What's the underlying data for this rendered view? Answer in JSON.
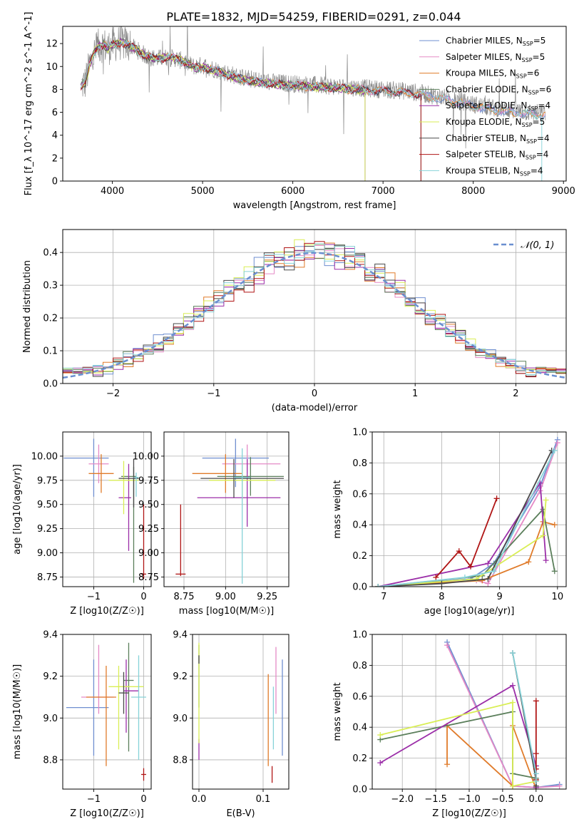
{
  "figure": {
    "title": "PLATE=1832, MJD=54259, FIBERID=0291, z=0.044"
  },
  "colors": {
    "Chabrier MILES": "#6f8fd0",
    "Salpeter MILES": "#e58ac6",
    "Kroupa MILES": "#e07b2a",
    "Chabrier ELODIE": "#5b7f5b",
    "Salpeter ELODIE": "#9b2ea8",
    "Kroupa ELODIE": "#d9ee55",
    "Chabrier STELIB": "#4a4a4a",
    "Salpeter STELIB": "#b01515",
    "Kroupa STELIB": "#86d2d8",
    "data": "#8a8a8a",
    "normal": "#6a8fd0"
  },
  "chart_data": [
    {
      "id": "spectrum",
      "type": "line",
      "xlabel": "wavelength [Angstrom, rest frame]",
      "ylabel": "Flux [f_λ 10^-17 erg cm^-2 s^-1 A^-1]",
      "xlim": [
        3450,
        9030
      ],
      "ylim": [
        0,
        13.5
      ],
      "xticks": [
        4000,
        5000,
        6000,
        7000,
        8000,
        9000
      ],
      "yticks": [
        0,
        2,
        4,
        6,
        8,
        10,
        12
      ],
      "legend_position": "top-right",
      "legend": [
        {
          "name": "Chabrier MILES",
          "nssp": "5"
        },
        {
          "name": "Salpeter MILES",
          "nssp": "5"
        },
        {
          "name": "Kroupa MILES",
          "nssp": "6"
        },
        {
          "name": "Chabrier ELODIE",
          "nssp": "6"
        },
        {
          "name": "Salpeter ELODIE",
          "nssp": "4"
        },
        {
          "name": "Kroupa ELODIE",
          "nssp": "5"
        },
        {
          "name": "Chabrier STELIB",
          "nssp": "4"
        },
        {
          "name": "Salpeter STELIB",
          "nssp": "4"
        },
        {
          "name": "Kroupa STELIB",
          "nssp": "4"
        }
      ],
      "continuum": {
        "x": [
          3650,
          3700,
          3750,
          3800,
          3850,
          3900,
          3950,
          4000,
          4100,
          4200,
          4300,
          4400,
          4500,
          4600,
          4700,
          4800,
          4900,
          5000,
          5200,
          5400,
          5600,
          5800,
          6000,
          6200,
          6400,
          6600,
          6800,
          7000,
          7200,
          7400,
          7600,
          7800,
          8000,
          8200,
          8400,
          8600,
          8800
        ],
        "y": [
          8.3,
          8.6,
          10.2,
          11.2,
          11.8,
          11.9,
          11.6,
          11.9,
          12.1,
          11.8,
          11.3,
          10.8,
          10.7,
          10.8,
          10.7,
          10.4,
          10.0,
          10.1,
          9.6,
          9.1,
          8.8,
          8.6,
          8.5,
          8.4,
          8.3,
          8.2,
          8.1,
          8.0,
          7.9,
          7.7,
          7.4,
          7.1,
          6.7,
          6.4,
          6.2,
          6.0,
          5.9
        ]
      },
      "models_end": {
        "STELIB": 7420,
        "ELODIE": 6800,
        "Kroupa STELIB": 9000
      }
    },
    {
      "id": "residual-distribution",
      "type": "line",
      "xlabel": "(data-model)/error",
      "ylabel": "Normed distribution",
      "xlim": [
        -2.5,
        2.5
      ],
      "ylim": [
        0,
        0.47
      ],
      "xticks": [
        -2,
        -1,
        0,
        1,
        2
      ],
      "yticks": [
        0.0,
        0.1,
        0.2,
        0.3,
        0.4
      ],
      "legend": [
        {
          "name": "𝒩(0, 1)"
        }
      ],
      "bin_width": 0.1
    },
    {
      "id": "age-vs-Z",
      "type": "scatter",
      "xlabel": "Z [log10(Z/Z☉)]",
      "ylabel": "age  [log10(age/yr)]",
      "xlim": [
        -1.62,
        0.15
      ],
      "ylim": [
        8.65,
        10.25
      ],
      "xticks": [
        -1,
        0
      ],
      "yticks": [
        8.75,
        9.0,
        9.25,
        9.5,
        9.75,
        10.0
      ],
      "series": [
        {
          "name": "Chabrier MILES",
          "x": -1.0,
          "y": 9.98,
          "xerr": [
            0.6,
            0.3
          ],
          "yerr": [
            0.4,
            0.2
          ]
        },
        {
          "name": "Salpeter MILES",
          "x": -0.9,
          "y": 9.92,
          "xerr": [
            0.2,
            0.2
          ],
          "yerr": [
            0.2,
            0.2
          ]
        },
        {
          "name": "Kroupa MILES",
          "x": -0.85,
          "y": 9.82,
          "xerr": [
            0.25,
            0.25
          ],
          "yerr": [
            0.2,
            0.2
          ]
        },
        {
          "name": "Chabrier ELODIE",
          "x": -0.2,
          "y": 9.79,
          "xerr": [
            0.25,
            0.05
          ],
          "yerr": [
            1.1,
            0.1
          ]
        },
        {
          "name": "Salpeter ELODIE",
          "x": -0.3,
          "y": 9.57,
          "xerr": [
            0.2,
            0.05
          ],
          "yerr": [
            0.55,
            0.35
          ]
        },
        {
          "name": "Kroupa ELODIE",
          "x": -0.4,
          "y": 9.75,
          "xerr": [
            0.3,
            0.3
          ],
          "yerr": [
            0.35,
            0.2
          ]
        },
        {
          "name": "Chabrier STELIB",
          "x": -0.2,
          "y": 9.77,
          "xerr": [
            0.3,
            0.1
          ],
          "yerr": [
            0.3,
            0.2
          ]
        },
        {
          "name": "Salpeter STELIB",
          "x": 0.0,
          "y": 8.78,
          "xerr": [
            0.05,
            0.05
          ],
          "yerr": [
            0.05,
            0.72
          ]
        },
        {
          "name": "Kroupa STELIB",
          "x": -0.15,
          "y": 9.78,
          "xerr": [
            0.05,
            0.05
          ],
          "yerr": [
            0.2,
            0.05
          ]
        }
      ]
    },
    {
      "id": "age-vs-mass",
      "type": "scatter",
      "xlabel": "mass [log10(M/M☉)]",
      "ylabel": "",
      "xlim": [
        8.63,
        9.38
      ],
      "ylim": [
        8.65,
        10.25
      ],
      "xticks": [
        8.75,
        9.0,
        9.25
      ],
      "yticks": [
        8.75,
        9.0,
        9.25,
        9.5,
        9.75,
        10.0
      ],
      "series": [
        {
          "name": "Chabrier MILES",
          "x": 9.06,
          "y": 9.98,
          "xerr": [
            0.2,
            0.2
          ],
          "yerr": [
            0.3,
            0.2
          ]
        },
        {
          "name": "Salpeter MILES",
          "x": 9.13,
          "y": 9.92,
          "xerr": [
            0.15,
            0.2
          ],
          "yerr": [
            0.1,
            0.2
          ]
        },
        {
          "name": "Kroupa MILES",
          "x": 9.0,
          "y": 9.82,
          "xerr": [
            0.2,
            0.1
          ],
          "yerr": [
            0.2,
            0.2
          ]
        },
        {
          "name": "Chabrier ELODIE",
          "x": 9.15,
          "y": 9.79,
          "xerr": [
            0.2,
            0.2
          ],
          "yerr": [
            0.2,
            0.2
          ]
        },
        {
          "name": "Salpeter ELODIE",
          "x": 9.13,
          "y": 9.57,
          "xerr": [
            0.3,
            0.2
          ],
          "yerr": [
            0.3,
            0.4
          ]
        },
        {
          "name": "Kroupa ELODIE",
          "x": 9.1,
          "y": 9.75,
          "xerr": [
            0.2,
            0.2
          ],
          "yerr": [
            0.2,
            0.2
          ]
        },
        {
          "name": "Chabrier STELIB",
          "x": 9.05,
          "y": 9.77,
          "xerr": [
            0.2,
            0.3
          ],
          "yerr": [
            0.2,
            0.2
          ]
        },
        {
          "name": "Salpeter STELIB",
          "x": 8.73,
          "y": 8.78,
          "xerr": [
            0.03,
            0.03
          ],
          "yerr": [
            0.02,
            0.72
          ]
        },
        {
          "name": "Kroupa STELIB",
          "x": 9.1,
          "y": 9.78,
          "xerr": [
            0.05,
            0.05
          ],
          "yerr": [
            1.1,
            0.3
          ]
        }
      ]
    },
    {
      "id": "mass-weight-vs-age",
      "type": "line",
      "xlabel": "age  [log10(age/yr)]",
      "ylabel": "mass weight",
      "xlim": [
        6.8,
        10.15
      ],
      "ylim": [
        0,
        1.0
      ],
      "xticks": [
        7,
        8,
        9,
        10
      ],
      "yticks": [
        0.0,
        0.2,
        0.4,
        0.6,
        0.8,
        1.0
      ],
      "series": [
        {
          "name": "Chabrier MILES",
          "x": [
            6.9,
            8.5,
            8.9,
            9.7,
            10.0
          ],
          "y": [
            0.0,
            0.05,
            0.15,
            0.65,
            0.95
          ]
        },
        {
          "name": "Salpeter MILES",
          "x": [
            6.9,
            8.6,
            8.8,
            9.7,
            10.0
          ],
          "y": [
            0.0,
            0.04,
            0.02,
            0.62,
            0.93
          ]
        },
        {
          "name": "Kroupa MILES",
          "x": [
            6.9,
            8.7,
            9.5,
            9.75,
            9.95
          ],
          "y": [
            0.0,
            0.04,
            0.16,
            0.42,
            0.4
          ]
        },
        {
          "name": "Chabrier ELODIE",
          "x": [
            6.9,
            8.7,
            9.75,
            9.95
          ],
          "y": [
            0.0,
            0.07,
            0.5,
            0.1
          ]
        },
        {
          "name": "Salpeter ELODIE",
          "x": [
            6.9,
            8.8,
            9.7,
            9.8
          ],
          "y": [
            0.0,
            0.15,
            0.67,
            0.17
          ]
        },
        {
          "name": "Kroupa ELODIE",
          "x": [
            6.9,
            8.6,
            9.75,
            9.8
          ],
          "y": [
            0.0,
            0.05,
            0.33,
            0.56
          ]
        },
        {
          "name": "Chabrier STELIB",
          "x": [
            6.9,
            8.0,
            8.8,
            9.9
          ],
          "y": [
            0.0,
            0.02,
            0.05,
            0.88
          ]
        },
        {
          "name": "Salpeter STELIB",
          "x": [
            7.9,
            8.3,
            8.5,
            8.95
          ],
          "y": [
            0.06,
            0.23,
            0.13,
            0.57
          ]
        },
        {
          "name": "Kroupa STELIB",
          "x": [
            6.9,
            8.4,
            8.9,
            9.95
          ],
          "y": [
            0.0,
            0.06,
            0.1,
            0.88
          ]
        }
      ]
    },
    {
      "id": "mass-vs-Z",
      "type": "scatter",
      "xlabel": "Z [log10(Z/Z☉)]",
      "ylabel": "mass [log10(M/M☉)]",
      "xlim": [
        -1.62,
        0.15
      ],
      "ylim": [
        8.66,
        9.4
      ],
      "xticks": [
        -1,
        0
      ],
      "yticks": [
        8.8,
        9.0,
        9.2,
        9.4
      ],
      "series": [
        {
          "name": "Chabrier MILES",
          "x": -1.0,
          "y": 9.05,
          "xerr": [
            0.55,
            0.3
          ],
          "yerr": [
            0.23,
            0.23
          ]
        },
        {
          "name": "Salpeter MILES",
          "x": -0.9,
          "y": 9.1,
          "xerr": [
            0.35,
            0.3
          ],
          "yerr": [
            0.08,
            0.25
          ]
        },
        {
          "name": "Kroupa MILES",
          "x": -0.75,
          "y": 9.1,
          "xerr": [
            0.4,
            0.2
          ],
          "yerr": [
            0.33,
            0.15
          ]
        },
        {
          "name": "Chabrier ELODIE",
          "x": -0.3,
          "y": 9.18,
          "xerr": [
            0.1,
            0.1
          ],
          "yerr": [
            0.34,
            0.18
          ]
        },
        {
          "name": "Salpeter ELODIE",
          "x": -0.35,
          "y": 9.13,
          "xerr": [
            0.05,
            0.25
          ],
          "yerr": [
            0.2,
            0.15
          ]
        },
        {
          "name": "Kroupa ELODIE",
          "x": -0.5,
          "y": 9.15,
          "xerr": [
            0.2,
            0.5
          ],
          "yerr": [
            0.3,
            0.1
          ]
        },
        {
          "name": "Chabrier STELIB",
          "x": -0.4,
          "y": 9.12,
          "xerr": [
            0.1,
            0.1
          ],
          "yerr": [
            0.1,
            0.1
          ]
        },
        {
          "name": "Salpeter STELIB",
          "x": 0.0,
          "y": 8.73,
          "xerr": [
            0.05,
            0.05
          ],
          "yerr": [
            0.03,
            0.03
          ]
        },
        {
          "name": "Kroupa STELIB",
          "x": -0.1,
          "y": 9.1,
          "xerr": [
            0.15,
            0.15
          ],
          "yerr": [
            0.3,
            0.2
          ]
        }
      ]
    },
    {
      "id": "mass-vs-EBV",
      "type": "scatter",
      "xlabel": "E(B-V)",
      "ylabel": "",
      "xlim": [
        -0.01,
        0.14
      ],
      "ylim": [
        8.66,
        9.4
      ],
      "xticks": [
        0.0,
        0.1
      ],
      "yticks": [
        8.8,
        9.0,
        9.2,
        9.4
      ],
      "series": [
        {
          "name": "Chabrier MILES",
          "x": 0.13,
          "y": 9.05,
          "xerr": [
            0,
            0
          ],
          "yerr": [
            0.23,
            0.23
          ]
        },
        {
          "name": "Salpeter MILES",
          "x": 0.12,
          "y": 9.17,
          "xerr": [
            0,
            0
          ],
          "yerr": [
            0.15,
            0.17
          ]
        },
        {
          "name": "Kroupa MILES",
          "x": 0.108,
          "y": 8.99,
          "xerr": [
            0,
            0
          ],
          "yerr": [
            0.22,
            0.22
          ]
        },
        {
          "name": "Chabrier ELODIE",
          "x": 0.0,
          "y": 9.2,
          "xerr": [
            0,
            0
          ],
          "yerr": [
            0.15,
            0.15
          ]
        },
        {
          "name": "Salpeter ELODIE",
          "x": 0.0,
          "y": 8.85,
          "xerr": [
            0,
            0
          ],
          "yerr": [
            0.05,
            0.05
          ]
        },
        {
          "name": "Kroupa ELODIE",
          "x": 0.0,
          "y": 9.12,
          "xerr": [
            0,
            0
          ],
          "yerr": [
            0.24,
            0.24
          ]
        },
        {
          "name": "Chabrier STELIB",
          "x": 0.0,
          "y": 9.28,
          "xerr": [
            0,
            0
          ],
          "yerr": [
            0.02,
            0.02
          ]
        },
        {
          "name": "Salpeter STELIB",
          "x": 0.114,
          "y": 8.73,
          "xerr": [
            0,
            0
          ],
          "yerr": [
            0.04,
            0.04
          ]
        },
        {
          "name": "Kroupa STELIB",
          "x": 0.116,
          "y": 9.0,
          "xerr": [
            0,
            0
          ],
          "yerr": [
            0.15,
            0.15
          ]
        }
      ]
    },
    {
      "id": "mass-weight-vs-Z",
      "type": "line",
      "xlabel": "Z [log10(Z/Z☉)]",
      "ylabel": "mass weight",
      "xlim": [
        -2.45,
        0.45
      ],
      "ylim": [
        0,
        1.0
      ],
      "xticks": [
        -2.0,
        -1.5,
        -1.0,
        -0.5,
        0.0
      ],
      "yticks": [
        0.0,
        0.2,
        0.4,
        0.6,
        0.8,
        1.0
      ],
      "series": [
        {
          "name": "Chabrier MILES",
          "x": [
            -1.33,
            -0.35,
            0.0,
            0.35
          ],
          "y": [
            0.95,
            0.02,
            0.01,
            0.03
          ]
        },
        {
          "name": "Salpeter MILES",
          "x": [
            -1.33,
            -0.35,
            0.0,
            0.35
          ],
          "y": [
            0.93,
            0.02,
            0.01,
            0.02
          ]
        },
        {
          "name": "Kroupa MILES",
          "x": [
            -1.33,
            -1.33,
            -0.35,
            -0.35,
            0.0
          ],
          "y": [
            0.16,
            0.41,
            0.02,
            0.41,
            0.0
          ]
        },
        {
          "name": "Chabrier ELODIE",
          "x": [
            -2.33,
            -0.35,
            -0.35,
            0.0,
            0.0
          ],
          "y": [
            0.32,
            0.5,
            0.1,
            0.07,
            0.01
          ]
        },
        {
          "name": "Salpeter ELODIE",
          "x": [
            -2.33,
            -0.35,
            0.0,
            0.0
          ],
          "y": [
            0.17,
            0.67,
            0.15,
            0.01
          ]
        },
        {
          "name": "Kroupa ELODIE",
          "x": [
            -2.33,
            -0.35,
            -0.35,
            0.0
          ],
          "y": [
            0.35,
            0.56,
            0.02,
            0.05
          ]
        },
        {
          "name": "Chabrier STELIB",
          "x": [
            -0.35,
            0.0,
            0.0
          ],
          "y": [
            0.88,
            0.06,
            0.02
          ]
        },
        {
          "name": "Salpeter STELIB",
          "x": [
            0.0,
            0.0,
            0.0,
            0.0
          ],
          "y": [
            0.57,
            0.23,
            0.13,
            0.06
          ]
        },
        {
          "name": "Kroupa STELIB",
          "x": [
            -0.35,
            0.0,
            0.0
          ],
          "y": [
            0.88,
            0.1,
            0.05
          ]
        }
      ]
    }
  ]
}
